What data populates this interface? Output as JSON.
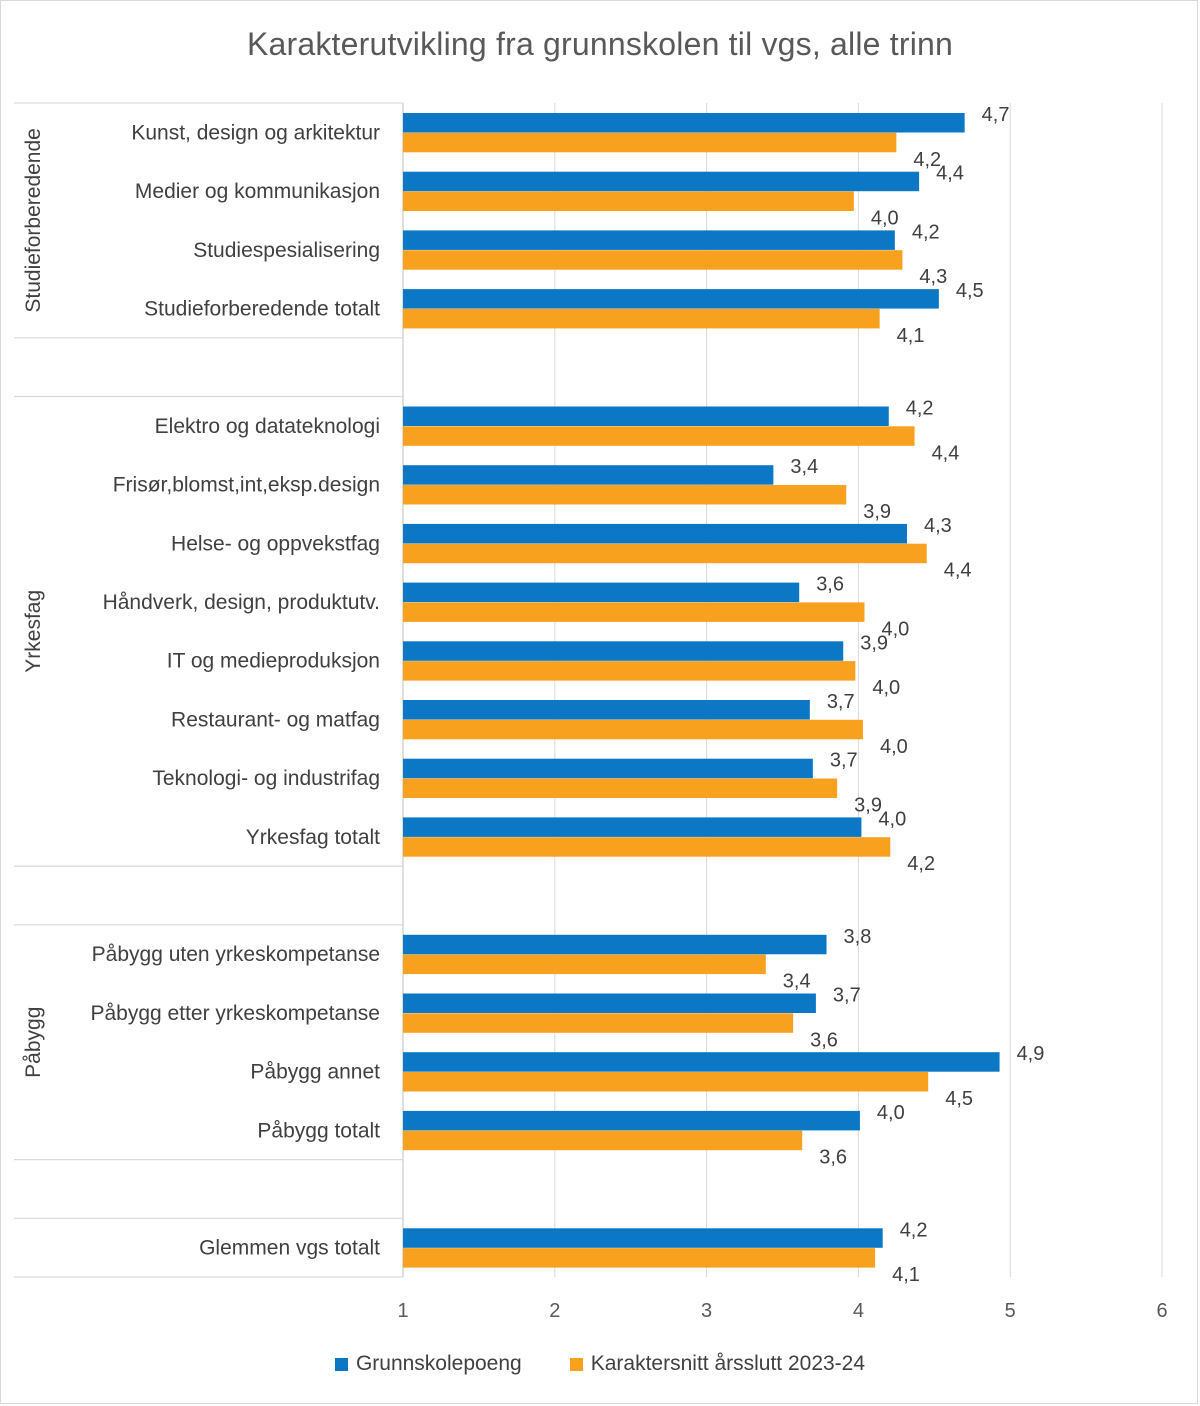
{
  "chart_data": {
    "type": "bar",
    "orientation": "horizontal",
    "title": "Karakterutvikling fra grunnskolen til vgs, alle trinn",
    "xlim": [
      1,
      6
    ],
    "xticks": [
      "1",
      "2",
      "3",
      "4",
      "5",
      "6"
    ],
    "grid": true,
    "legend_position": "bottom",
    "series": [
      {
        "name": "Grunnskolepoeng",
        "color": "#0b77c5"
      },
      {
        "name": "Karaktersnitt årsslutt 2023-24",
        "color": "#f8a11f"
      }
    ],
    "groups": [
      {
        "name": "Studieforberedende",
        "rows": [
          {
            "label": "Kunst, design og arkitektur",
            "values": [
              4.7,
              4.25
            ],
            "labels": [
              "4,7",
              "4,2"
            ]
          },
          {
            "label": "Medier og kommunikasjon",
            "values": [
              4.4,
              3.97
            ],
            "labels": [
              "4,4",
              "4,0"
            ]
          },
          {
            "label": "Studiespesialisering",
            "values": [
              4.24,
              4.29
            ],
            "labels": [
              "4,2",
              "4,3"
            ]
          },
          {
            "label": "Studieforberedende totalt",
            "values": [
              4.53,
              4.14
            ],
            "labels": [
              "4,5",
              "4,1"
            ]
          }
        ]
      },
      {
        "name": "Yrkesfag",
        "rows": [
          {
            "label": "Elektro og datateknologi",
            "values": [
              4.2,
              4.37
            ],
            "labels": [
              "4,2",
              "4,4"
            ]
          },
          {
            "label": "Frisør,blomst,int,eksp.design",
            "values": [
              3.44,
              3.92
            ],
            "labels": [
              "3,4",
              "3,9"
            ]
          },
          {
            "label": "Helse- og oppvekstfag",
            "values": [
              4.32,
              4.45
            ],
            "labels": [
              "4,3",
              "4,4"
            ]
          },
          {
            "label": "Håndverk, design, produktutv.",
            "values": [
              3.61,
              4.04
            ],
            "labels": [
              "3,6",
              "4,0"
            ]
          },
          {
            "label": "IT og medieproduksjon",
            "values": [
              3.9,
              3.98
            ],
            "labels": [
              "3,9",
              "4,0"
            ]
          },
          {
            "label": "Restaurant- og matfag",
            "values": [
              3.68,
              4.03
            ],
            "labels": [
              "3,7",
              "4,0"
            ]
          },
          {
            "label": "Teknologi- og industrifag",
            "values": [
              3.7,
              3.86
            ],
            "labels": [
              "3,7",
              "3,9"
            ]
          },
          {
            "label": "Yrkesfag totalt",
            "values": [
              4.02,
              4.21
            ],
            "labels": [
              "4,0",
              "4,2"
            ]
          }
        ]
      },
      {
        "name": "Påbygg",
        "rows": [
          {
            "label": "Påbygg uten yrkeskompetanse",
            "values": [
              3.79,
              3.39
            ],
            "labels": [
              "3,8",
              "3,4"
            ]
          },
          {
            "label": "Påbygg etter yrkeskompetanse",
            "values": [
              3.72,
              3.57
            ],
            "labels": [
              "3,7",
              "3,6"
            ]
          },
          {
            "label": "Påbygg annet",
            "values": [
              4.93,
              4.46
            ],
            "labels": [
              "4,9",
              "4,5"
            ]
          },
          {
            "label": "Påbygg totalt",
            "values": [
              4.01,
              3.63
            ],
            "labels": [
              "4,0",
              "3,6"
            ]
          }
        ]
      },
      {
        "name": "",
        "rows": [
          {
            "label": "Glemmen vgs totalt",
            "values": [
              4.16,
              4.11
            ],
            "labels": [
              "4,2",
              "4,1"
            ]
          }
        ]
      }
    ]
  }
}
